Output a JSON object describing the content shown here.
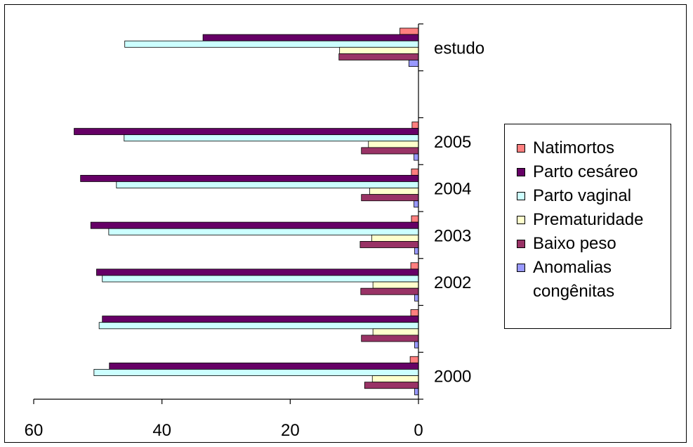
{
  "chart_data": {
    "type": "bar",
    "orientation": "horizontal",
    "x_direction": "reversed",
    "categories": [
      "2000",
      "",
      "2002",
      "2003",
      "2004",
      "2005",
      "",
      "estudo"
    ],
    "category_labels": [
      "2000",
      "",
      "2002",
      "2003",
      "2004",
      "2005",
      "",
      "estudo"
    ],
    "series": [
      {
        "name": "Natimortos",
        "color": "#ff7f7f",
        "values": [
          1.3,
          1.2,
          1.2,
          1.1,
          1.1,
          1.0,
          null,
          2.9
        ]
      },
      {
        "name": "Parto cesáreo",
        "color": "#660066",
        "values": [
          48.2,
          49.3,
          50.2,
          51.1,
          52.7,
          53.7,
          null,
          33.6
        ]
      },
      {
        "name": "Parto vaginal",
        "color": "#ccffff",
        "values": [
          50.6,
          49.8,
          49.3,
          48.3,
          47.1,
          45.9,
          null,
          45.8
        ]
      },
      {
        "name": "Prematuridade",
        "color": "#ffffcc",
        "values": [
          7.2,
          7.1,
          7.1,
          7.3,
          7.6,
          7.8,
          null,
          12.3
        ]
      },
      {
        "name": "Baixo peso",
        "color": "#993366",
        "values": [
          8.4,
          8.9,
          9.0,
          9.1,
          8.9,
          8.9,
          null,
          12.4
        ]
      },
      {
        "name": "Anomalias congênitas",
        "color": "#9999ff",
        "values": [
          0.6,
          0.6,
          0.6,
          0.6,
          0.7,
          0.7,
          null,
          1.5
        ]
      }
    ],
    "xlim": [
      0,
      60
    ],
    "x_ticks": [
      "0",
      "20",
      "40",
      "60"
    ],
    "title": "",
    "xlabel": "",
    "ylabel": "",
    "grid": false,
    "legend_position": "right"
  },
  "legend": {
    "items": [
      {
        "label": "Natimortos",
        "color": "#ff7f7f"
      },
      {
        "label": "Parto cesáreo",
        "color": "#660066"
      },
      {
        "label": "Parto vaginal",
        "color": "#ccffff"
      },
      {
        "label": "Prematuridade",
        "color": "#ffffcc"
      },
      {
        "label": "Baixo peso",
        "color": "#993366"
      },
      {
        "label": "Anomalias",
        "color": "#9999ff"
      }
    ],
    "continuation": "congênitas"
  }
}
